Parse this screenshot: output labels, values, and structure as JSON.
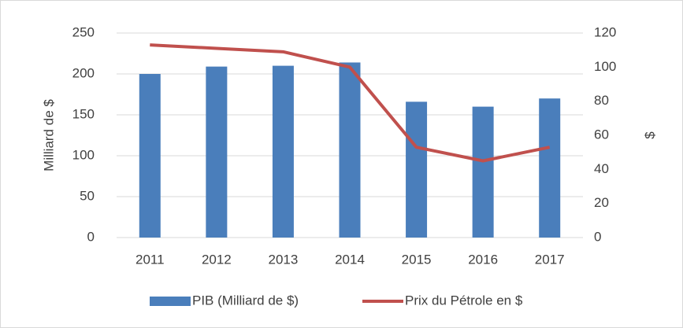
{
  "chart_data": {
    "type": "bar",
    "categories": [
      "2011",
      "2012",
      "2013",
      "2014",
      "2015",
      "2016",
      "2017"
    ],
    "series": [
      {
        "name": "PIB (Milliard de $)",
        "type": "bar",
        "color": "#4a7ebb",
        "values": [
          200,
          209,
          210,
          214,
          166,
          160,
          170
        ]
      },
      {
        "name": "Prix du Pétrole en $",
        "type": "line",
        "axis": "y2",
        "color": "#c0504d",
        "values": [
          113,
          111,
          109,
          100,
          53,
          45,
          53
        ]
      }
    ],
    "ylabel": "Milliard de $",
    "y2label": "$",
    "ylim": [
      0,
      250
    ],
    "yticks": [
      0,
      50,
      100,
      150,
      200,
      250
    ],
    "y2lim": [
      0,
      120
    ],
    "y2ticks": [
      0,
      20,
      40,
      60,
      80,
      100,
      120
    ],
    "grid": true,
    "legend": "bottom"
  }
}
